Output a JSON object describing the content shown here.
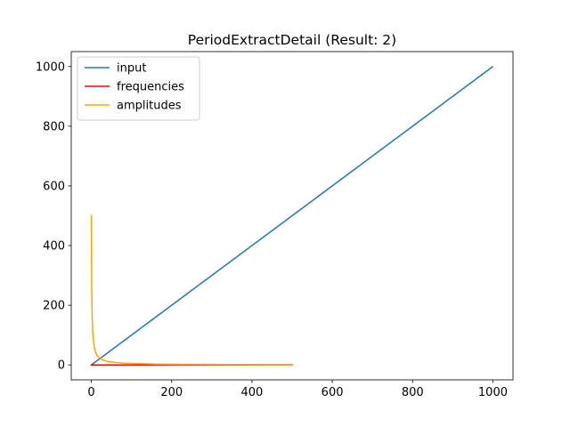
{
  "chart_data": {
    "type": "line",
    "title": "PeriodExtractDetail (Result: 2)",
    "xlabel": "",
    "ylabel": "",
    "xlim": [
      -50,
      1050
    ],
    "ylim": [
      -50,
      1050
    ],
    "xticks": [
      0,
      200,
      400,
      600,
      800,
      1000
    ],
    "yticks": [
      0,
      200,
      400,
      600,
      800,
      1000
    ],
    "grid": false,
    "legend_position": "top-left",
    "series": [
      {
        "name": "input",
        "color": "#1f77b4",
        "points": [
          [
            0,
            0
          ],
          [
            999,
            999
          ]
        ]
      },
      {
        "name": "frequencies",
        "color": "#ff0000",
        "points": [
          [
            0,
            0
          ],
          [
            100,
            0.1
          ],
          [
            200,
            0.2
          ],
          [
            300,
            0.3
          ],
          [
            400,
            0.4
          ],
          [
            500,
            0.5
          ]
        ]
      },
      {
        "name": "amplitudes",
        "color": "#ffa500",
        "points": [
          [
            0,
            500
          ],
          [
            1,
            250
          ],
          [
            2,
            167
          ],
          [
            3,
            125
          ],
          [
            4,
            100
          ],
          [
            5,
            83
          ],
          [
            6,
            71
          ],
          [
            8,
            56
          ],
          [
            10,
            45
          ],
          [
            12,
            38
          ],
          [
            15,
            31
          ],
          [
            20,
            24
          ],
          [
            25,
            19
          ],
          [
            30,
            16
          ],
          [
            40,
            12
          ],
          [
            50,
            10
          ],
          [
            60,
            8
          ],
          [
            80,
            6
          ],
          [
            100,
            5
          ],
          [
            130,
            4
          ],
          [
            160,
            3
          ],
          [
            200,
            2.5
          ],
          [
            250,
            2
          ],
          [
            300,
            1.7
          ],
          [
            350,
            1.4
          ],
          [
            400,
            1.2
          ],
          [
            450,
            1.1
          ],
          [
            500,
            1
          ]
        ]
      }
    ]
  }
}
